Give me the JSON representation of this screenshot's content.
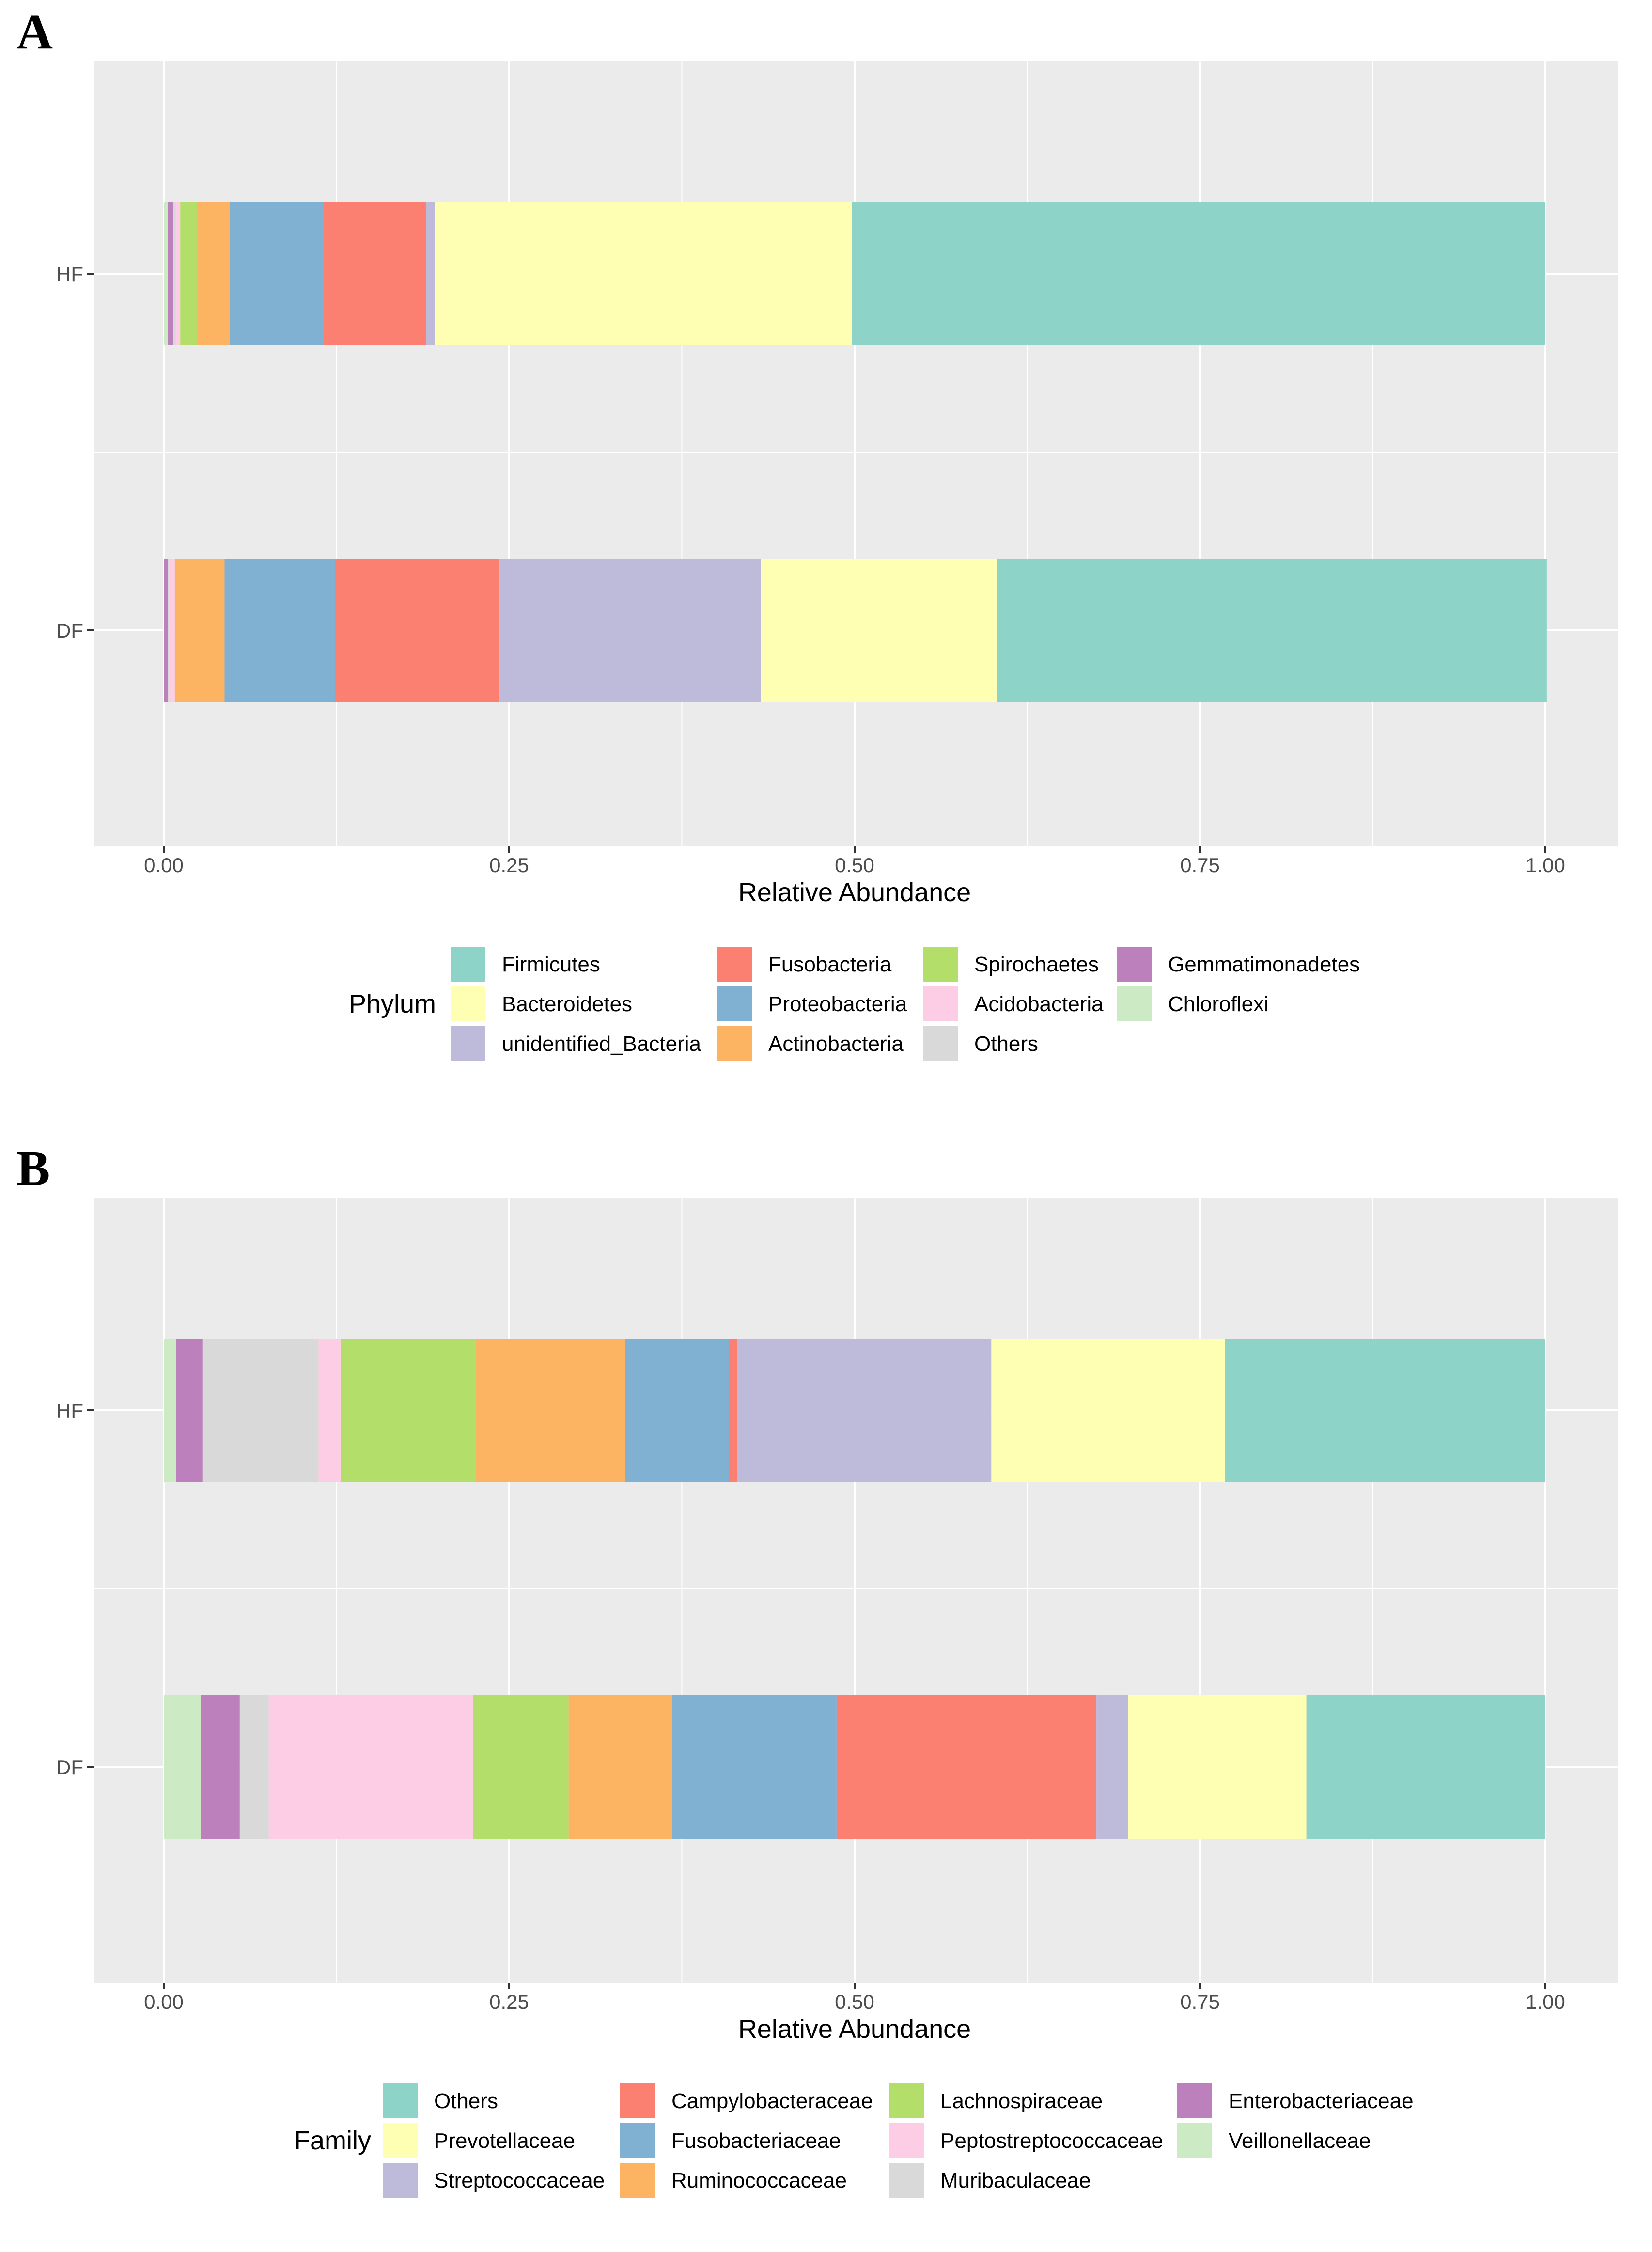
{
  "panels": [
    {
      "letter": "A",
      "chart_data": {
        "type": "bar",
        "orientation": "horizontal",
        "stacked": true,
        "categories": [
          "HF",
          "DF"
        ],
        "xlabel": "Relative Abundance",
        "xlim": [
          0,
          1
        ],
        "xticks": [
          "0.00",
          "0.25",
          "0.50",
          "0.75",
          "1.00"
        ],
        "grid": true,
        "legend_title": "Phylum",
        "series": [
          {
            "name": "Firmicutes",
            "color": "#8DD3C7",
            "values": [
              0.502,
              0.398
            ]
          },
          {
            "name": "Bacteroidetes",
            "color": "#FFFFB3",
            "values": [
              0.302,
              0.171
            ]
          },
          {
            "name": "unidentified_Bacteria",
            "color": "#BEBADA",
            "values": [
              0.006,
              0.189
            ]
          },
          {
            "name": "Fusobacteria",
            "color": "#FB8072",
            "values": [
              0.074,
              0.119
            ]
          },
          {
            "name": "Proteobacteria",
            "color": "#80B1D3",
            "values": [
              0.068,
              0.08
            ]
          },
          {
            "name": "Actinobacteria",
            "color": "#FDB462",
            "values": [
              0.024,
              0.036
            ]
          },
          {
            "name": "Spirochaetes",
            "color": "#B3DE69",
            "values": [
              0.012,
              0.0
            ]
          },
          {
            "name": "Acidobacteria",
            "color": "#FCCDE5",
            "values": [
              0.003,
              0.004
            ]
          },
          {
            "name": "Others",
            "color": "#D9D9D9",
            "values": [
              0.002,
              0.001
            ]
          },
          {
            "name": "Gemmatimonadetes",
            "color": "#BC80BD",
            "values": [
              0.004,
              0.003
            ]
          },
          {
            "name": "Chloroflexi",
            "color": "#CCEBC5",
            "values": [
              0.003,
              0.0
            ]
          }
        ]
      }
    },
    {
      "letter": "B",
      "chart_data": {
        "type": "bar",
        "orientation": "horizontal",
        "stacked": true,
        "categories": [
          "HF",
          "DF"
        ],
        "xlabel": "Relative Abundance",
        "xlim": [
          0,
          1
        ],
        "xticks": [
          "0.00",
          "0.25",
          "0.50",
          "0.75",
          "1.00"
        ],
        "grid": true,
        "legend_title": "Family",
        "series": [
          {
            "name": "Others",
            "color": "#8DD3C7",
            "values": [
              0.232,
              0.173
            ]
          },
          {
            "name": "Prevotellaceae",
            "color": "#FFFFB3",
            "values": [
              0.169,
              0.129
            ]
          },
          {
            "name": "Streptococcaceae",
            "color": "#BEBADA",
            "values": [
              0.184,
              0.023
            ]
          },
          {
            "name": "Campylobacteraceae",
            "color": "#FB8072",
            "values": [
              0.006,
              0.188
            ]
          },
          {
            "name": "Fusobacteriaceae",
            "color": "#80B1D3",
            "values": [
              0.075,
              0.119
            ]
          },
          {
            "name": "Ruminococcaceae",
            "color": "#FDB462",
            "values": [
              0.108,
              0.075
            ]
          },
          {
            "name": "Lachnospiraceae",
            "color": "#B3DE69",
            "values": [
              0.098,
              0.069
            ]
          },
          {
            "name": "Peptostreptococcaceae",
            "color": "#FCCDE5",
            "values": [
              0.016,
              0.148
            ]
          },
          {
            "name": "Muribaculaceae",
            "color": "#D9D9D9",
            "values": [
              0.084,
              0.021
            ]
          },
          {
            "name": "Enterobacteriaceae",
            "color": "#BC80BD",
            "values": [
              0.019,
              0.028
            ]
          },
          {
            "name": "Veillonellaceae",
            "color": "#CCEBC5",
            "values": [
              0.009,
              0.027
            ]
          }
        ]
      }
    }
  ]
}
